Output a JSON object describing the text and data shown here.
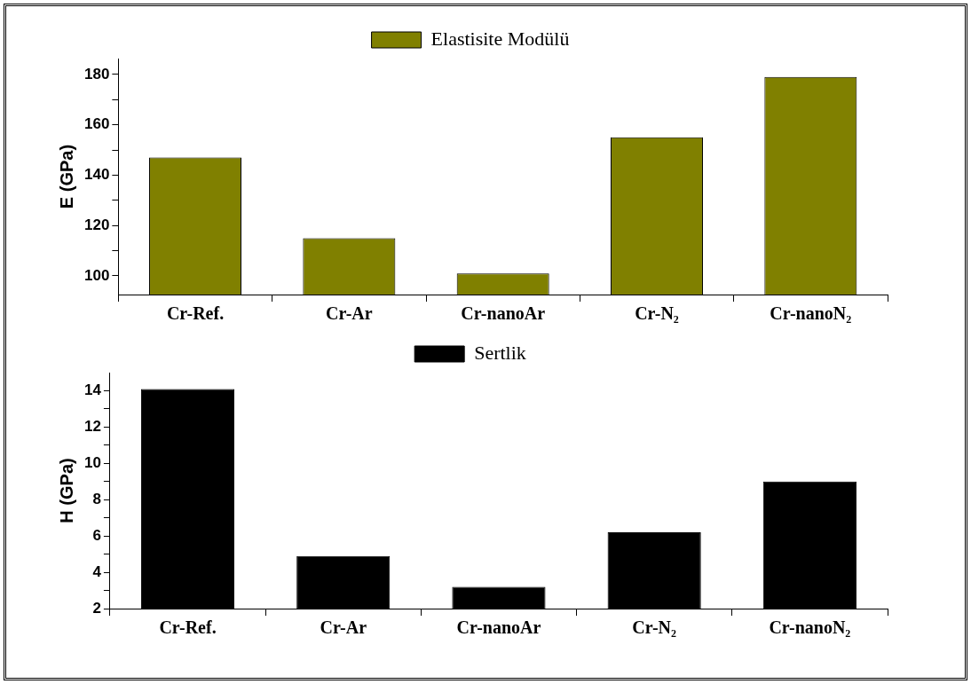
{
  "chart_data": [
    {
      "type": "bar",
      "ylabel": "E (GPa)",
      "categories": [
        "Cr-Ref.",
        "Cr-Ar",
        "Cr-nanoAr",
        "Cr-N₂",
        "Cr-nanoN₂"
      ],
      "series": [
        {
          "name": "Elastisite Modülü",
          "color": "#808000",
          "values": [
            147,
            115,
            101,
            155,
            179
          ]
        }
      ],
      "ylim": [
        92.6,
        186.3
      ],
      "yticks": [
        {
          "value": 100,
          "label": "100"
        },
        {
          "value": 110,
          "label": null
        },
        {
          "value": 120,
          "label": "120"
        },
        {
          "value": 130,
          "label": null
        },
        {
          "value": 140,
          "label": "140"
        },
        {
          "value": 150,
          "label": null
        },
        {
          "value": 160,
          "label": "160"
        },
        {
          "value": 170,
          "label": null
        },
        {
          "value": 180,
          "label": "180"
        }
      ],
      "legend": "top"
    },
    {
      "type": "bar",
      "ylabel": "H (GPa)",
      "categories": [
        "Cr-Ref.",
        "Cr-Ar",
        "Cr-nanoAr",
        "Cr-N₂",
        "Cr-nanoN₂"
      ],
      "series": [
        {
          "name": "Sertlik",
          "color": "#000000",
          "values": [
            14.1,
            4.9,
            3.2,
            6.2,
            9.0
          ]
        }
      ],
      "ylim": [
        2,
        15
      ],
      "yticks": [
        2,
        {
          "value": 3,
          "label": null
        },
        4,
        {
          "value": 5,
          "label": null
        },
        6,
        {
          "value": 7,
          "label": null
        },
        8,
        {
          "value": 9,
          "label": null
        },
        10,
        {
          "value": 11,
          "label": null
        },
        12,
        {
          "value": 13,
          "label": null
        },
        14
      ],
      "legend": "top"
    }
  ]
}
